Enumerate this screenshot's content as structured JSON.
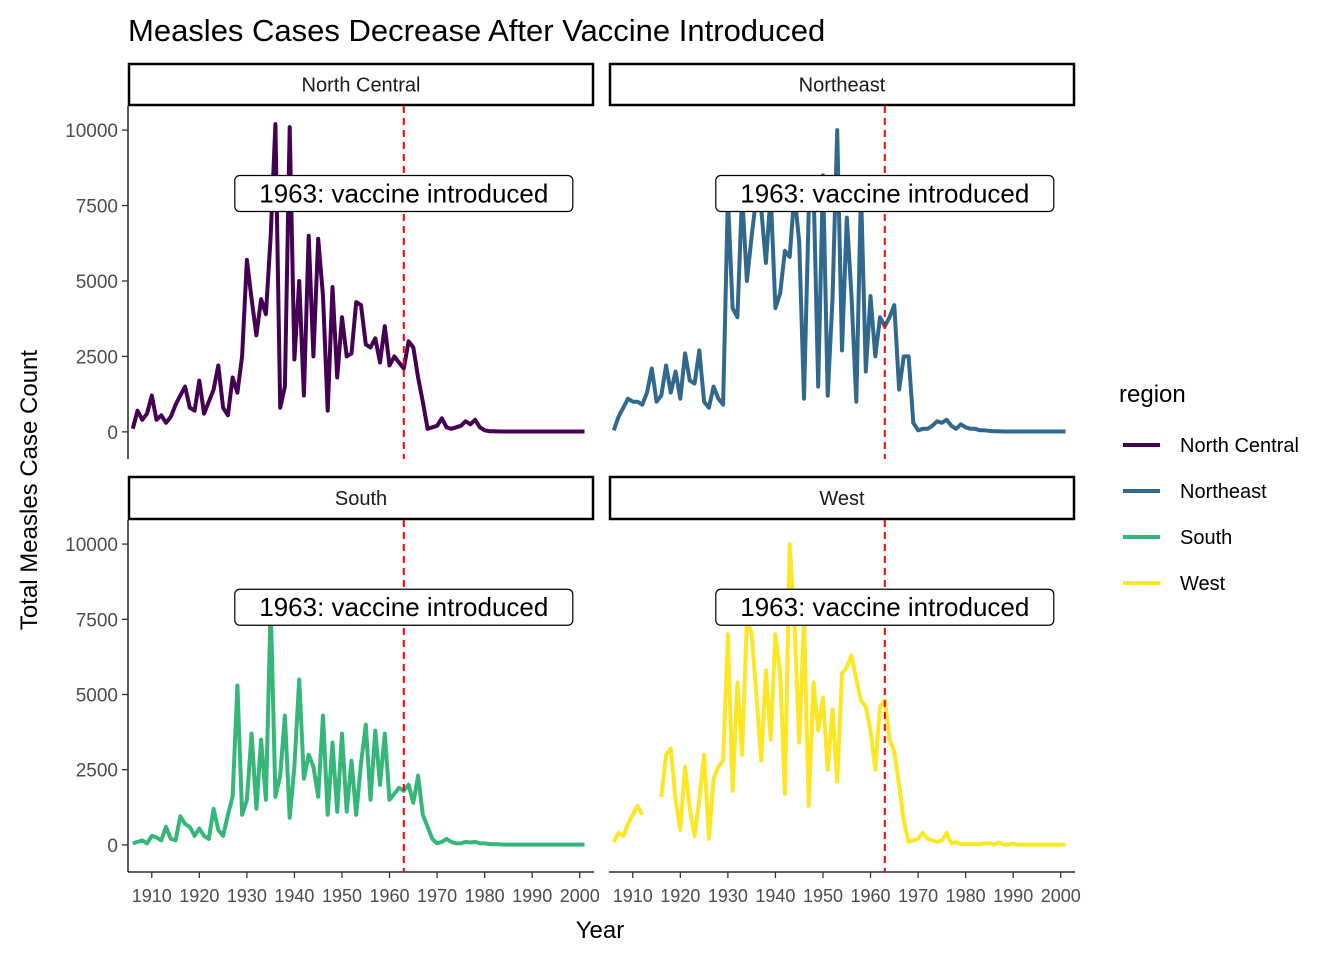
{
  "chart_data": {
    "type": "line",
    "title": "Measles Cases Decrease After Vaccine Introduced",
    "xlabel": "Year",
    "ylabel": "Total Measles Case Count",
    "xlim": [
      1905,
      2003
    ],
    "ylim": [
      -900,
      10800
    ],
    "xticks": [
      1910,
      1920,
      1930,
      1940,
      1950,
      1960,
      1970,
      1980,
      1990,
      2000
    ],
    "yticks": [
      0,
      2500,
      5000,
      7500,
      10000
    ],
    "grid": false,
    "legend": {
      "title": "region",
      "position": "right"
    },
    "vline": {
      "x": 1963,
      "color": "#FF0000",
      "style": "dashed"
    },
    "annotation": {
      "text": "1963: vaccine introduced",
      "x": 1963,
      "y": 7900
    },
    "series": [
      {
        "name": "North Central",
        "color": "#440154",
        "x": [
          1906,
          1907,
          1908,
          1909,
          1910,
          1911,
          1912,
          1913,
          1914,
          1915,
          1916,
          1917,
          1918,
          1919,
          1920,
          1921,
          1922,
          1923,
          1924,
          1925,
          1926,
          1927,
          1928,
          1929,
          1930,
          1931,
          1932,
          1933,
          1934,
          1935,
          1936,
          1937,
          1938,
          1939,
          1940,
          1941,
          1942,
          1943,
          1944,
          1945,
          1946,
          1947,
          1948,
          1949,
          1950,
          1951,
          1952,
          1953,
          1954,
          1955,
          1956,
          1957,
          1958,
          1959,
          1960,
          1961,
          1962,
          1963,
          1964,
          1965,
          1966,
          1967,
          1968,
          1969,
          1970,
          1971,
          1972,
          1973,
          1974,
          1975,
          1976,
          1977,
          1978,
          1979,
          1980,
          1981,
          1982,
          1983,
          1984,
          1985,
          1986,
          1987,
          1988,
          1989,
          1990,
          1991,
          1992,
          1993,
          1994,
          1995,
          1996,
          1997,
          1998,
          1999,
          2000,
          2001
        ],
        "y": [
          100,
          700,
          400,
          600,
          1200,
          400,
          550,
          300,
          500,
          900,
          1200,
          1500,
          800,
          700,
          1700,
          600,
          1000,
          1400,
          2200,
          800,
          550,
          1800,
          1300,
          2500,
          5700,
          4400,
          3200,
          4400,
          3900,
          6500,
          10200,
          800,
          1500,
          10100,
          2400,
          5000,
          1200,
          6500,
          2500,
          6400,
          4500,
          700,
          4800,
          1800,
          3800,
          2500,
          2600,
          4300,
          4200,
          2900,
          2800,
          3100,
          2300,
          3500,
          2200,
          2500,
          2300,
          2100,
          3000,
          2800,
          1800,
          1000,
          100,
          150,
          200,
          450,
          150,
          100,
          150,
          200,
          350,
          250,
          400,
          150,
          50,
          20,
          20,
          10,
          10,
          10,
          10,
          10,
          10,
          10,
          10,
          10,
          10,
          10,
          10,
          10,
          10,
          10,
          10,
          10,
          10,
          10
        ]
      },
      {
        "name": "Northeast",
        "color": "#31688E",
        "x": [
          1906,
          1907,
          1908,
          1909,
          1910,
          1911,
          1912,
          1913,
          1914,
          1915,
          1916,
          1917,
          1918,
          1919,
          1920,
          1921,
          1922,
          1923,
          1924,
          1925,
          1926,
          1927,
          1928,
          1929,
          1930,
          1931,
          1932,
          1933,
          1934,
          1935,
          1936,
          1937,
          1938,
          1939,
          1940,
          1941,
          1942,
          1943,
          1944,
          1945,
          1946,
          1947,
          1948,
          1949,
          1950,
          1951,
          1952,
          1953,
          1954,
          1955,
          1956,
          1957,
          1958,
          1959,
          1960,
          1961,
          1962,
          1963,
          1964,
          1965,
          1966,
          1967,
          1968,
          1969,
          1970,
          1971,
          1972,
          1973,
          1974,
          1975,
          1976,
          1977,
          1978,
          1979,
          1980,
          1981,
          1982,
          1983,
          1984,
          1985,
          1986,
          1987,
          1988,
          1989,
          1990,
          1991,
          1992,
          1993,
          1994,
          1995,
          1996,
          1997,
          1998,
          1999,
          2000,
          2001
        ],
        "y": [
          50,
          500,
          800,
          1100,
          1000,
          1000,
          900,
          1300,
          2100,
          1000,
          1200,
          2200,
          1300,
          2000,
          1100,
          2600,
          1700,
          1600,
          2700,
          1000,
          800,
          1500,
          1100,
          900,
          7800,
          4100,
          3800,
          7900,
          5000,
          6500,
          7800,
          7400,
          5600,
          7900,
          4100,
          4600,
          6000,
          5800,
          7900,
          6300,
          1100,
          7300,
          8200,
          1500,
          8500,
          1200,
          4400,
          10000,
          2700,
          7100,
          4500,
          1000,
          8000,
          2000,
          4500,
          2500,
          3800,
          3500,
          3800,
          4200,
          1400,
          2500,
          2500,
          300,
          50,
          100,
          100,
          200,
          350,
          300,
          400,
          200,
          100,
          250,
          150,
          100,
          100,
          50,
          50,
          30,
          20,
          20,
          10,
          10,
          10,
          10,
          10,
          10,
          10,
          10,
          10,
          10,
          10,
          10,
          10,
          10
        ]
      },
      {
        "name": "South",
        "color": "#35B779",
        "x": [
          1906,
          1907,
          1908,
          1909,
          1910,
          1911,
          1912,
          1913,
          1914,
          1915,
          1916,
          1917,
          1918,
          1919,
          1920,
          1921,
          1922,
          1923,
          1924,
          1925,
          1926,
          1927,
          1928,
          1929,
          1930,
          1931,
          1932,
          1933,
          1934,
          1935,
          1936,
          1937,
          1938,
          1939,
          1940,
          1941,
          1942,
          1943,
          1944,
          1945,
          1946,
          1947,
          1948,
          1949,
          1950,
          1951,
          1952,
          1953,
          1954,
          1955,
          1956,
          1957,
          1958,
          1959,
          1960,
          1961,
          1962,
          1963,
          1964,
          1965,
          1966,
          1967,
          1968,
          1969,
          1970,
          1971,
          1972,
          1973,
          1974,
          1975,
          1976,
          1977,
          1978,
          1979,
          1980,
          1981,
          1982,
          1983,
          1984,
          1985,
          1986,
          1987,
          1988,
          1989,
          1990,
          1991,
          1992,
          1993,
          1994,
          1995,
          1996,
          1997,
          1998,
          1999,
          2000,
          2001
        ],
        "y": [
          50,
          100,
          150,
          50,
          300,
          250,
          150,
          600,
          200,
          150,
          950,
          700,
          600,
          300,
          550,
          300,
          200,
          1200,
          500,
          300,
          1000,
          1600,
          5300,
          1000,
          1500,
          3700,
          1200,
          3500,
          1500,
          8000,
          1600,
          2300,
          4300,
          900,
          2600,
          5500,
          2200,
          3000,
          2600,
          1600,
          4300,
          1000,
          3400,
          1100,
          3700,
          1100,
          2800,
          1000,
          2700,
          4000,
          1500,
          3800,
          2000,
          3700,
          1500,
          1700,
          1900,
          1800,
          2000,
          1400,
          2300,
          1000,
          600,
          200,
          50,
          100,
          200,
          100,
          50,
          50,
          100,
          80,
          100,
          50,
          50,
          30,
          20,
          20,
          10,
          10,
          10,
          10,
          10,
          10,
          10,
          10,
          10,
          10,
          10,
          10,
          10,
          10,
          10,
          10,
          10,
          10
        ]
      },
      {
        "name": "West",
        "color": "#FDE725",
        "x": [
          1906,
          1907,
          1908,
          1909,
          1910,
          1911,
          1912,
          1913,
          1914,
          1915,
          1916,
          1917,
          1918,
          1919,
          1920,
          1921,
          1922,
          1923,
          1924,
          1925,
          1926,
          1927,
          1928,
          1929,
          1930,
          1931,
          1932,
          1933,
          1934,
          1935,
          1936,
          1937,
          1938,
          1939,
          1940,
          1941,
          1942,
          1943,
          1944,
          1945,
          1946,
          1947,
          1948,
          1949,
          1950,
          1951,
          1952,
          1953,
          1954,
          1955,
          1956,
          1957,
          1958,
          1959,
          1960,
          1961,
          1962,
          1963,
          1964,
          1965,
          1966,
          1967,
          1968,
          1969,
          1970,
          1971,
          1972,
          1973,
          1974,
          1975,
          1976,
          1977,
          1978,
          1979,
          1980,
          1981,
          1982,
          1983,
          1984,
          1985,
          1986,
          1987,
          1988,
          1989,
          1990,
          1991,
          1992,
          1993,
          1994,
          1995,
          1996,
          1997,
          1998,
          1999,
          2000,
          2001
        ],
        "y": [
          100,
          400,
          300,
          700,
          1000,
          1300,
          1000,
          null,
          600,
          null,
          1600,
          3000,
          3200,
          1500,
          500,
          2600,
          1200,
          300,
          1500,
          3000,
          200,
          2200,
          2600,
          2800,
          7000,
          1800,
          5400,
          3000,
          7500,
          7000,
          5000,
          2800,
          5800,
          3500,
          7000,
          5700,
          1700,
          10000,
          7400,
          3400,
          7500,
          1300,
          5400,
          3800,
          4900,
          2500,
          4500,
          2100,
          5700,
          5900,
          6300,
          5500,
          4800,
          4600,
          3800,
          2500,
          4600,
          4800,
          3500,
          3100,
          2000,
          800,
          100,
          150,
          200,
          400,
          200,
          150,
          100,
          150,
          400,
          50,
          100,
          20,
          20,
          30,
          20,
          20,
          50,
          60,
          10,
          80,
          10,
          10,
          50,
          10,
          10,
          10,
          10,
          10,
          10,
          10,
          10,
          10,
          10,
          10
        ]
      }
    ]
  }
}
